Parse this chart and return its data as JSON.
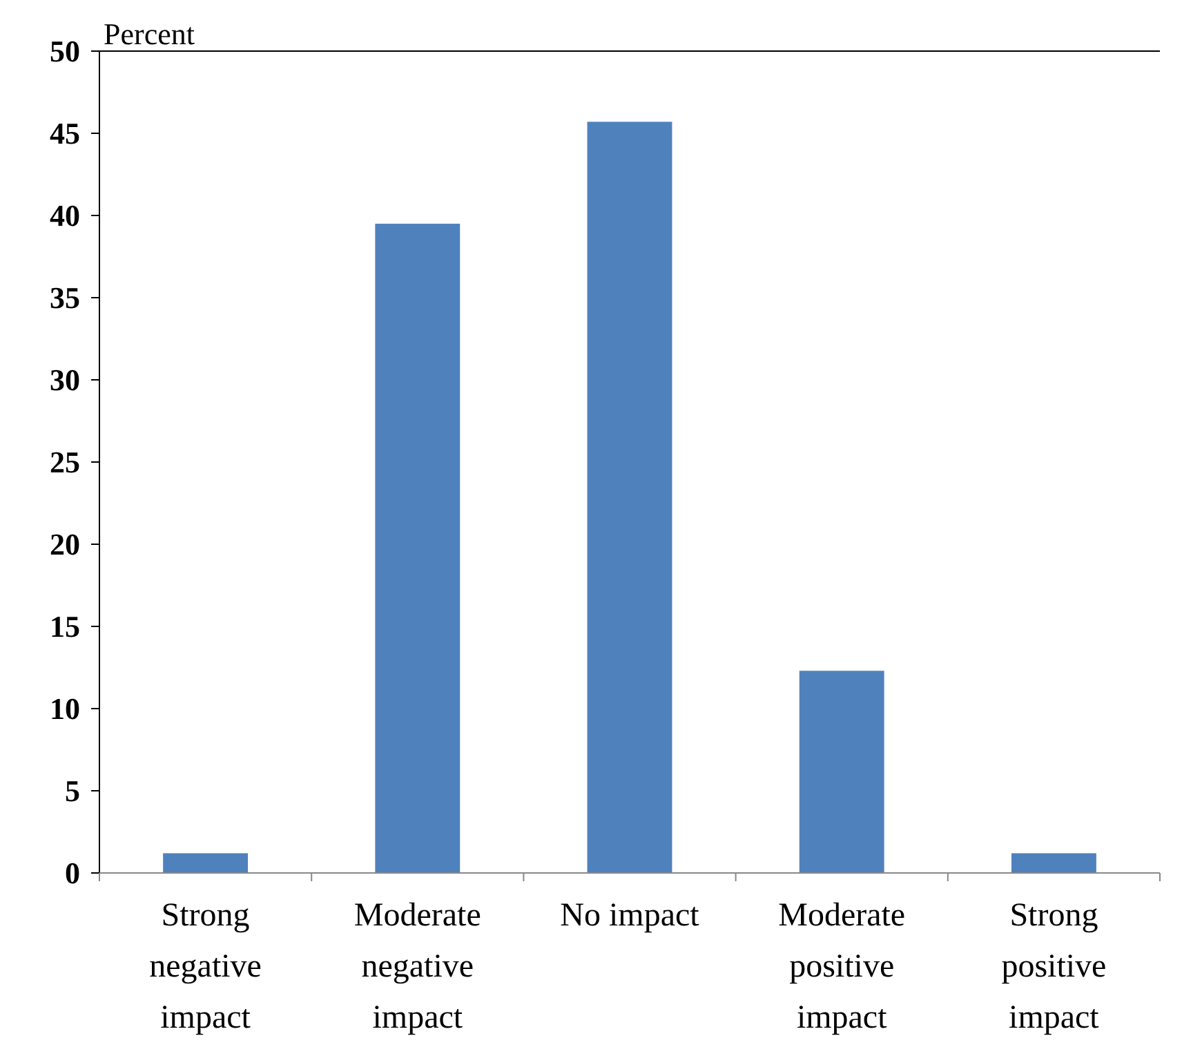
{
  "chart_data": {
    "type": "bar",
    "ylabel": "Percent",
    "categories": [
      "Strong negative impact",
      "Moderate negative impact",
      "No impact",
      "Moderate positive impact",
      "Strong positive impact"
    ],
    "values": [
      1.2,
      39.5,
      45.7,
      12.3,
      1.2
    ],
    "color": "#4f81bd",
    "ylim": [
      0,
      50
    ],
    "yticks": [
      0,
      5,
      10,
      15,
      20,
      25,
      30,
      35,
      40,
      45,
      50
    ],
    "grid": false
  }
}
